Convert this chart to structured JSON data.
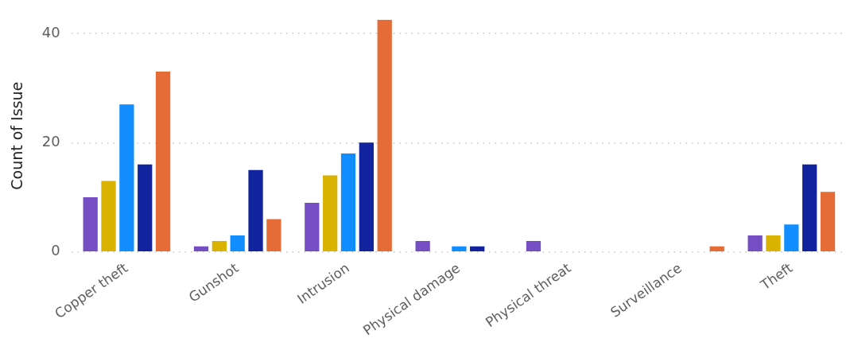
{
  "chart_data": {
    "type": "bar",
    "ylabel": "Count of Issue",
    "categories": [
      "Copper theft",
      "Gunshot",
      "Intrusion",
      "Physical damage",
      "Physical threat",
      "Surveillance",
      "Theft"
    ],
    "series": [
      {
        "color": "#744ec2",
        "values": [
          10,
          1,
          9,
          2,
          2,
          null,
          3
        ]
      },
      {
        "color": "#d9b300",
        "values": [
          13,
          2,
          14,
          null,
          null,
          null,
          3
        ]
      },
      {
        "color": "#118dff",
        "values": [
          27,
          3,
          18,
          1,
          null,
          null,
          5
        ]
      },
      {
        "color": "#12239e",
        "values": [
          16,
          15,
          20,
          1,
          null,
          null,
          16
        ]
      },
      {
        "color": "#e66c37",
        "values": [
          33,
          6,
          42.5,
          null,
          null,
          1,
          11
        ]
      }
    ],
    "ylim": [
      0,
      42.5
    ],
    "yticks": [
      0,
      20,
      40
    ],
    "grid": "y"
  }
}
